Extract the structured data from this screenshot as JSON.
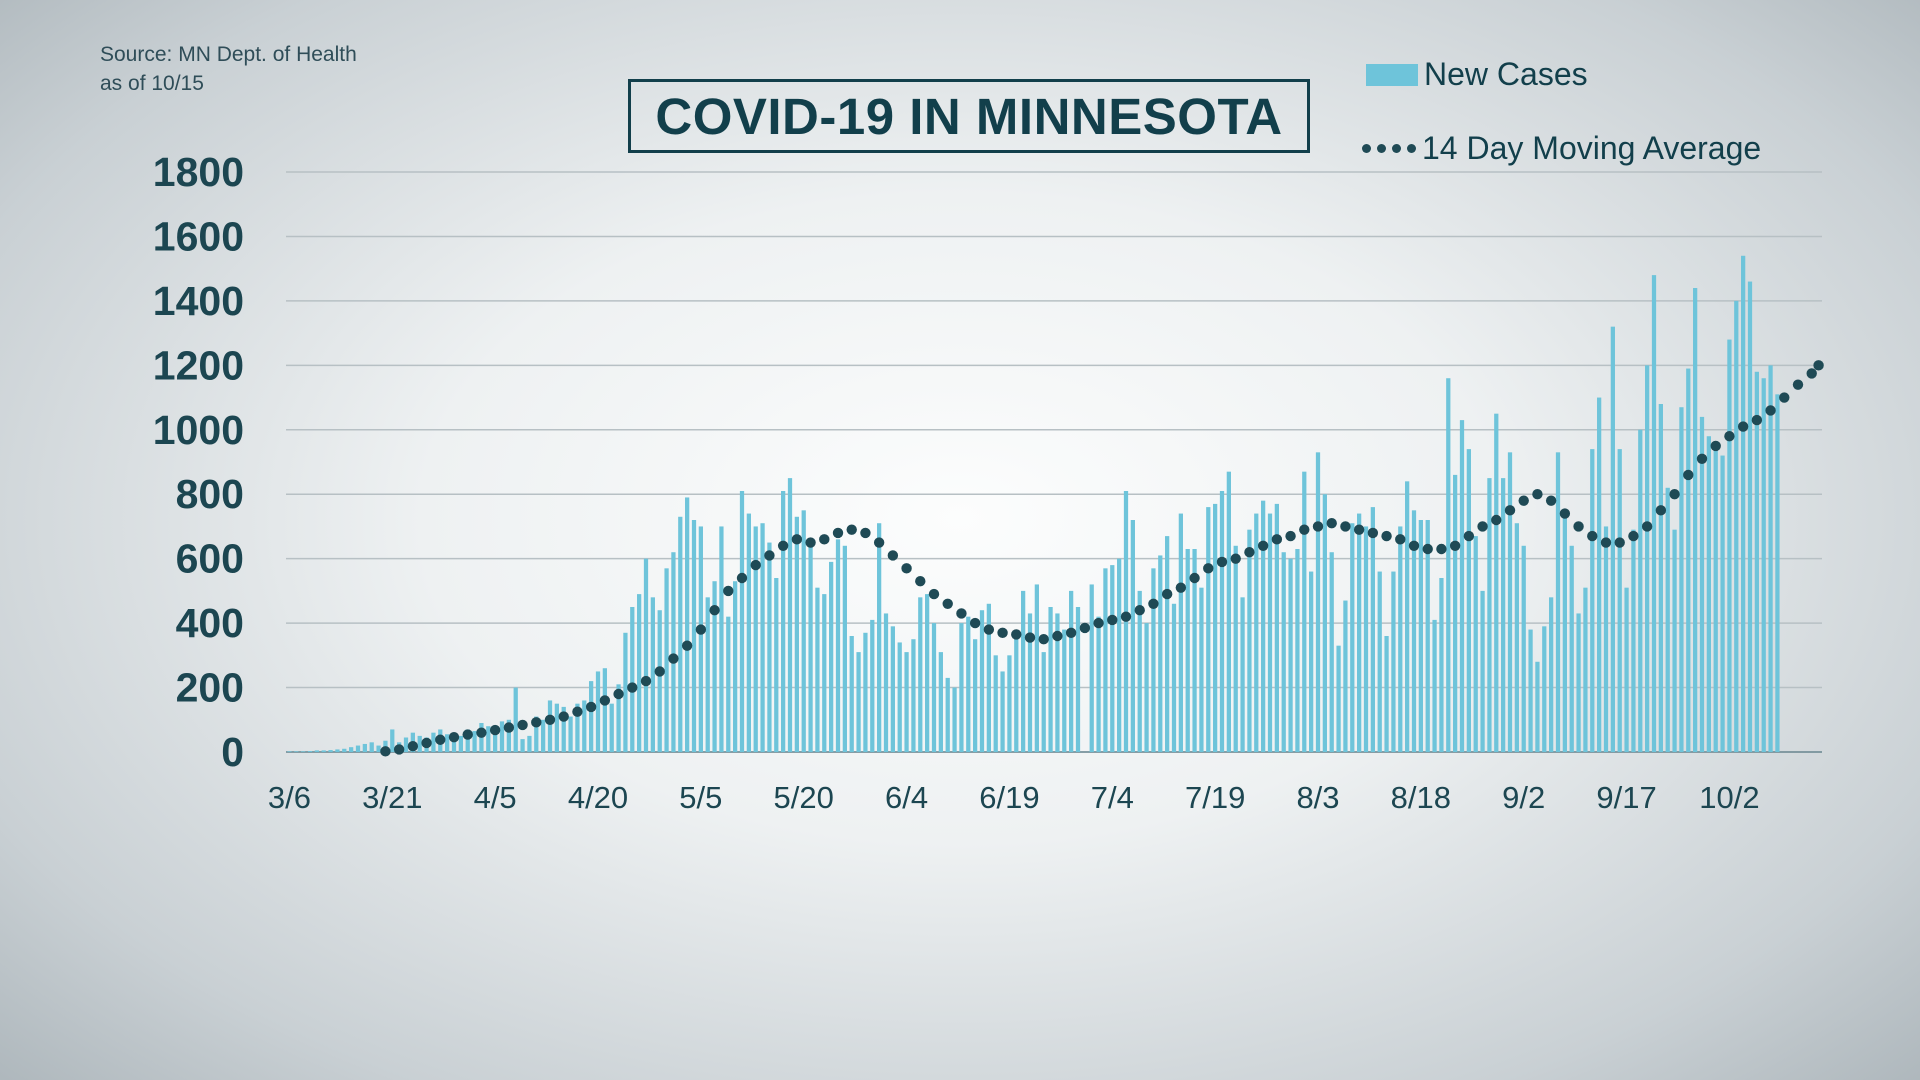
{
  "header": {
    "source_line1": "Source: MN Dept. of Health",
    "source_line2": "as of 10/15",
    "title": "COVID-19 IN MINNESOTA"
  },
  "legend": {
    "bars_label": "New Cases",
    "line_label": "14 Day Moving Average"
  },
  "colors": {
    "bar": "#6ec4da",
    "dots": "#1f4a55",
    "text": "#123f4b",
    "grid": "#b7c0c4"
  },
  "chart_data": {
    "type": "bar",
    "title": "COVID-19 IN MINNESOTA",
    "xlabel": "",
    "ylabel": "",
    "ylim": [
      0,
      1800
    ],
    "yticks": [
      0,
      200,
      400,
      600,
      800,
      1000,
      1200,
      1400,
      1600,
      1800
    ],
    "grid": true,
    "legend_placement": "top-right",
    "x_start": "3/6",
    "x_end": "10/15",
    "xtick_labels": [
      "3/6",
      "3/21",
      "4/5",
      "4/20",
      "5/5",
      "5/20",
      "6/4",
      "6/19",
      "7/4",
      "7/19",
      "8/3",
      "8/18",
      "9/2",
      "9/17",
      "10/2"
    ],
    "series": [
      {
        "name": "New Cases",
        "type": "bar",
        "values": [
          2,
          2,
          2,
          3,
          5,
          5,
          6,
          8,
          10,
          15,
          20,
          25,
          30,
          20,
          35,
          70,
          30,
          45,
          60,
          50,
          45,
          60,
          70,
          55,
          60,
          50,
          70,
          65,
          90,
          80,
          80,
          95,
          100,
          200,
          40,
          50,
          110,
          100,
          160,
          150,
          140,
          110,
          150,
          160,
          220,
          250,
          260,
          150,
          210,
          370,
          450,
          490,
          600,
          480,
          440,
          570,
          620,
          730,
          790,
          720,
          700,
          480,
          530,
          700,
          420,
          530,
          810,
          740,
          700,
          710,
          650,
          540,
          810,
          850,
          730,
          750,
          650,
          510,
          490,
          590,
          660,
          640,
          360,
          310,
          370,
          410,
          710,
          430,
          390,
          340,
          310,
          350,
          480,
          490,
          400,
          310,
          230,
          200,
          400,
          420,
          350,
          440,
          460,
          300,
          250,
          300,
          360,
          500,
          430,
          520,
          310,
          450,
          430,
          380,
          500,
          450,
          0,
          520,
          420,
          570,
          580,
          600,
          810,
          720,
          500,
          400,
          570,
          610,
          670,
          460,
          740,
          630,
          630,
          510,
          760,
          770,
          810,
          870,
          640,
          480,
          690,
          740,
          780,
          740,
          770,
          620,
          600,
          630,
          870,
          560,
          930,
          800,
          620,
          330,
          470,
          710,
          740,
          700,
          760,
          560,
          360,
          560,
          700,
          840,
          750,
          720,
          720,
          410,
          540,
          1160,
          860,
          1030,
          940,
          670,
          500,
          850,
          1050,
          850,
          930,
          710,
          640,
          380,
          280,
          390,
          480,
          930,
          740,
          640,
          430,
          510,
          940,
          1100,
          700,
          1320,
          940,
          510,
          690,
          1000,
          1200,
          1480,
          1080,
          820,
          690,
          1070,
          1190,
          1440,
          1040,
          980,
          960,
          920,
          1280,
          1400,
          1540,
          1460,
          1180,
          1160,
          1200,
          1110
        ]
      },
      {
        "name": "14 Day Moving Average",
        "type": "line",
        "style": "dotted",
        "points": [
          [
            "3/20",
            2
          ],
          [
            "3/22",
            8
          ],
          [
            "3/24",
            18
          ],
          [
            "3/26",
            28
          ],
          [
            "3/28",
            38
          ],
          [
            "3/30",
            46
          ],
          [
            "4/1",
            54
          ],
          [
            "4/3",
            60
          ],
          [
            "4/5",
            68
          ],
          [
            "4/7",
            76
          ],
          [
            "4/9",
            84
          ],
          [
            "4/11",
            92
          ],
          [
            "4/13",
            100
          ],
          [
            "4/15",
            110
          ],
          [
            "4/17",
            125
          ],
          [
            "4/19",
            140
          ],
          [
            "4/21",
            160
          ],
          [
            "4/23",
            180
          ],
          [
            "4/25",
            200
          ],
          [
            "4/27",
            220
          ],
          [
            "4/29",
            250
          ],
          [
            "5/1",
            290
          ],
          [
            "5/3",
            330
          ],
          [
            "5/5",
            380
          ],
          [
            "5/7",
            440
          ],
          [
            "5/9",
            500
          ],
          [
            "5/11",
            540
          ],
          [
            "5/13",
            580
          ],
          [
            "5/15",
            610
          ],
          [
            "5/17",
            640
          ],
          [
            "5/19",
            660
          ],
          [
            "5/21",
            650
          ],
          [
            "5/23",
            660
          ],
          [
            "5/25",
            680
          ],
          [
            "5/27",
            690
          ],
          [
            "5/29",
            680
          ],
          [
            "5/31",
            650
          ],
          [
            "6/2",
            610
          ],
          [
            "6/4",
            570
          ],
          [
            "6/6",
            530
          ],
          [
            "6/8",
            490
          ],
          [
            "6/10",
            460
          ],
          [
            "6/12",
            430
          ],
          [
            "6/14",
            400
          ],
          [
            "6/16",
            380
          ],
          [
            "6/18",
            370
          ],
          [
            "6/20",
            365
          ],
          [
            "6/22",
            355
          ],
          [
            "6/24",
            350
          ],
          [
            "6/26",
            360
          ],
          [
            "6/28",
            370
          ],
          [
            "6/30",
            385
          ],
          [
            "7/2",
            400
          ],
          [
            "7/4",
            410
          ],
          [
            "7/6",
            420
          ],
          [
            "7/8",
            440
          ],
          [
            "7/10",
            460
          ],
          [
            "7/12",
            490
          ],
          [
            "7/14",
            510
          ],
          [
            "7/16",
            540
          ],
          [
            "7/18",
            570
          ],
          [
            "7/20",
            590
          ],
          [
            "7/22",
            600
          ],
          [
            "7/24",
            620
          ],
          [
            "7/26",
            640
          ],
          [
            "7/28",
            660
          ],
          [
            "7/30",
            670
          ],
          [
            "8/1",
            690
          ],
          [
            "8/3",
            700
          ],
          [
            "8/5",
            710
          ],
          [
            "8/7",
            700
          ],
          [
            "8/9",
            690
          ],
          [
            "8/11",
            680
          ],
          [
            "8/13",
            670
          ],
          [
            "8/15",
            660
          ],
          [
            "8/17",
            640
          ],
          [
            "8/19",
            630
          ],
          [
            "8/21",
            630
          ],
          [
            "8/23",
            640
          ],
          [
            "8/25",
            670
          ],
          [
            "8/27",
            700
          ],
          [
            "8/29",
            720
          ],
          [
            "8/31",
            750
          ],
          [
            "9/2",
            780
          ],
          [
            "9/4",
            800
          ],
          [
            "9/6",
            780
          ],
          [
            "9/8",
            740
          ],
          [
            "9/10",
            700
          ],
          [
            "9/12",
            670
          ],
          [
            "9/14",
            650
          ],
          [
            "9/16",
            650
          ],
          [
            "9/18",
            670
          ],
          [
            "9/20",
            700
          ],
          [
            "9/22",
            750
          ],
          [
            "9/24",
            800
          ],
          [
            "9/26",
            860
          ],
          [
            "9/28",
            910
          ],
          [
            "9/30",
            950
          ],
          [
            "10/2",
            980
          ],
          [
            "10/4",
            1010
          ],
          [
            "10/6",
            1030
          ],
          [
            "10/8",
            1060
          ],
          [
            "10/10",
            1100
          ],
          [
            "10/12",
            1140
          ],
          [
            "10/14",
            1175
          ],
          [
            "10/15",
            1200
          ]
        ]
      }
    ]
  }
}
